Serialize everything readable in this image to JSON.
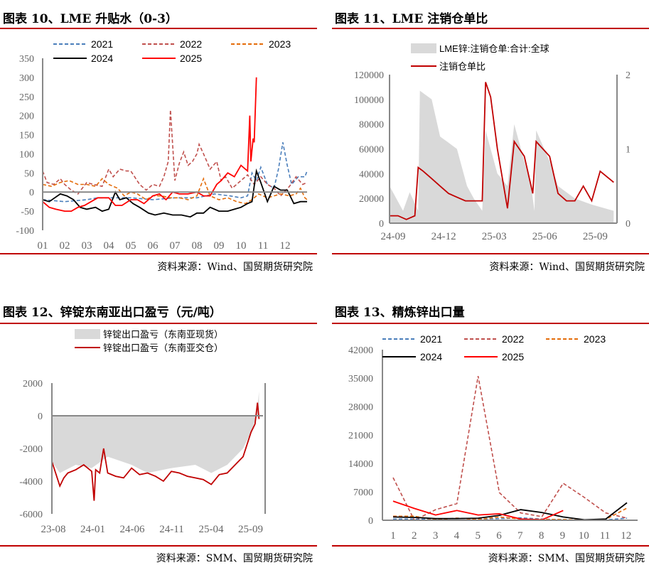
{
  "chart_data": [
    {
      "id": "c1",
      "type": "line",
      "title": "图表 10、LME 升贴水（0-3）",
      "source": "资料来源：Wind、国贸期货研究院",
      "ylim": [
        -100,
        350
      ],
      "yticks": [
        "350",
        "300",
        "250",
        "200",
        "150",
        "100",
        "50",
        "0",
        "-50",
        "-100"
      ],
      "xticks": [
        "01",
        "02",
        "03",
        "04",
        "05",
        "06",
        "07",
        "08",
        "09",
        "10",
        "11",
        "12"
      ],
      "series": [
        {
          "name": "2021",
          "color": "#4a7ebb",
          "dash": true,
          "x": [
            1,
            2,
            3,
            3.5,
            4,
            5,
            6,
            7,
            8,
            8.8,
            9.5,
            10,
            10.3,
            10.5,
            10.7,
            10.9,
            11.2,
            11.5,
            11.7,
            11.9,
            12.1,
            12.3,
            12.6,
            12.9,
            13
          ],
          "y": [
            -20,
            -25,
            -20,
            -15,
            -15,
            -15,
            -20,
            -15,
            -15,
            -5,
            -10,
            -15,
            -10,
            50,
            30,
            65,
            20,
            10,
            60,
            130,
            70,
            20,
            40,
            40,
            55
          ]
        },
        {
          "name": "2022",
          "color": "#c0504d",
          "dash": true,
          "x": [
            1,
            1.2,
            1.5,
            1.8,
            2,
            2.3,
            2.6,
            3,
            3.3,
            3.7,
            4,
            4.2,
            4.5,
            4.8,
            5,
            5.4,
            5.7,
            6,
            6.3,
            6.5,
            6.7,
            6.8,
            7,
            7.2,
            7.4,
            7.6,
            7.8,
            8,
            8.1,
            8.3,
            8.6,
            8.9,
            9.1,
            9.3,
            9.6,
            10,
            10.3,
            10.6,
            10.9,
            11.2,
            11.5,
            11.8,
            12.2,
            12.5,
            12.8,
            13
          ],
          "y": [
            55,
            25,
            20,
            35,
            20,
            5,
            -5,
            25,
            20,
            15,
            60,
            40,
            60,
            55,
            55,
            20,
            5,
            20,
            15,
            40,
            80,
            215,
            30,
            75,
            105,
            70,
            80,
            100,
            125,
            100,
            60,
            80,
            30,
            40,
            10,
            30,
            45,
            20,
            40,
            20,
            10,
            -10,
            15,
            40,
            20,
            25
          ]
        },
        {
          "name": "2023",
          "color": "#e46c0a",
          "dash": true,
          "x": [
            1,
            1.4,
            1.8,
            2.2,
            2.6,
            3,
            3.4,
            3.7,
            4,
            4.4,
            4.7,
            5,
            5.3,
            5.7,
            6,
            6.4,
            6.8,
            7.2,
            7.6,
            8,
            8.3,
            8.6,
            9,
            9.4,
            9.8,
            10.2,
            10.5,
            10.8,
            11.2,
            11.5,
            11.8,
            12.2,
            12.5,
            12.7,
            12.9,
            13
          ],
          "y": [
            20,
            15,
            25,
            30,
            20,
            20,
            15,
            35,
            20,
            10,
            -10,
            0,
            -5,
            -20,
            -10,
            -10,
            -15,
            -15,
            -20,
            -10,
            35,
            -10,
            -20,
            -15,
            -25,
            -30,
            -20,
            -5,
            -15,
            -10,
            -5,
            -10,
            -5,
            10,
            -15,
            -20
          ]
        },
        {
          "name": "2024",
          "color": "#000000",
          "dash": false,
          "x": [
            1,
            1.3,
            1.8,
            2.1,
            2.4,
            2.7,
            3,
            3.4,
            3.7,
            4,
            4.3,
            4.5,
            4.8,
            5.1,
            5.4,
            5.8,
            6.1,
            6.5,
            6.9,
            7.3,
            7.7,
            8,
            8.3,
            8.6,
            9,
            9.4,
            9.7,
            10,
            10.3,
            10.5,
            10.7,
            10.9,
            11.2,
            11.5,
            11.8,
            12.1,
            12.4,
            12.7,
            13
          ],
          "y": [
            -20,
            -25,
            -5,
            -10,
            -20,
            -40,
            -45,
            -40,
            -50,
            -45,
            0,
            -20,
            -15,
            -30,
            -40,
            -55,
            -60,
            -55,
            -60,
            -60,
            -65,
            -55,
            -55,
            -40,
            -50,
            -50,
            -45,
            -40,
            -30,
            -25,
            55,
            25,
            -25,
            15,
            5,
            5,
            -30,
            -25,
            -25
          ]
        },
        {
          "name": "2025",
          "color": "#ff0000",
          "dash": false,
          "x": [
            1,
            1.3,
            1.6,
            2,
            2.3,
            2.6,
            2.9,
            3.2,
            3.5,
            4,
            4.3,
            4.6,
            5,
            5.3,
            5.6,
            6,
            6.3,
            6.6,
            6.9,
            7.2,
            7.6,
            8,
            8.3,
            8.6,
            8.9,
            9.1,
            9.4,
            9.7,
            10,
            10.2,
            10.3,
            10.4,
            10.45,
            10.55,
            10.6,
            10.7
          ],
          "y": [
            -25,
            -40,
            -45,
            -50,
            -50,
            -40,
            -35,
            -25,
            -15,
            -15,
            -35,
            -35,
            -20,
            -20,
            -30,
            -10,
            -5,
            -20,
            0,
            -5,
            -5,
            0,
            -10,
            -10,
            20,
            30,
            50,
            40,
            70,
            60,
            55,
            200,
            80,
            140,
            130,
            300
          ]
        }
      ]
    },
    {
      "id": "c2",
      "type": "area+line",
      "title": "图表 11、LME 注销仓单比",
      "source": "资料来源：Wind、国贸期货研究院",
      "ylim": [
        0,
        120000
      ],
      "y2lim": [
        0,
        2
      ],
      "yticks": [
        "120000",
        "100000",
        "80000",
        "60000",
        "40000",
        "20000",
        "0"
      ],
      "y2ticks": [
        "2",
        "1",
        "0"
      ],
      "xticks": [
        "24-09",
        "24-12",
        "25-03",
        "25-06",
        "25-09"
      ],
      "series": [
        {
          "name": "LME锌:注销仓单:合计:全球",
          "color": "#d9d9d9",
          "kind": "area",
          "x": [
            0,
            0.4,
            0.8,
            1.2,
            1.7,
            1.8,
            2.0,
            2.5,
            3,
            3.5,
            4,
            4.6,
            5,
            5.5,
            5.7,
            6,
            6.4,
            7,
            7.4,
            8,
            8.4,
            8.6,
            8.7,
            9.5,
            10,
            11,
            12,
            13.3
          ],
          "y": [
            30000,
            20000,
            10000,
            25000,
            10000,
            107000,
            105000,
            100000,
            70000,
            65000,
            60000,
            30000,
            20000,
            10000,
            75000,
            60000,
            40000,
            30000,
            80000,
            50000,
            30000,
            10000,
            75000,
            50000,
            30000,
            20000,
            15000,
            10000
          ]
        },
        {
          "name": "注销仓单比",
          "color": "#c00000",
          "kind": "line",
          "x": [
            0,
            0.5,
            1,
            1.5,
            1.7,
            2,
            2.5,
            3,
            3.5,
            4,
            4.5,
            5,
            5.5,
            5.7,
            6,
            6.4,
            7,
            7.4,
            8,
            8.5,
            8.7,
            9.5,
            10,
            10.5,
            11,
            11.5,
            12,
            12.5,
            13.3
          ],
          "y": [
            0.1,
            0.1,
            0.05,
            0.1,
            0.75,
            0.7,
            0.6,
            0.5,
            0.4,
            0.35,
            0.3,
            0.3,
            0.3,
            1.9,
            1.7,
            1.0,
            0.2,
            1.1,
            0.9,
            0.4,
            1.1,
            0.9,
            0.4,
            0.3,
            0.3,
            0.5,
            0.3,
            0.7,
            0.55
          ]
        }
      ]
    },
    {
      "id": "c3",
      "type": "area+line",
      "title": "图表 12、锌锭东南亚出口盈亏（元/吨）",
      "source": "资料来源：SMM、国贸期货研究院",
      "ylim": [
        -6000,
        2000
      ],
      "yticks": [
        "2000",
        "0",
        "-2000",
        "-4000",
        "-6000"
      ],
      "xticks": [
        "23-08",
        "24-01",
        "24-06",
        "24-11",
        "25-04",
        "25-09"
      ],
      "series": [
        {
          "name": "锌锭出口盈亏（东南亚现货）",
          "color": "#d9d9d9",
          "kind": "area",
          "x": [
            0,
            1,
            3,
            5,
            7,
            10,
            12,
            15,
            18,
            20,
            22,
            24,
            25,
            25.7,
            26
          ],
          "y": [
            -2800,
            -3500,
            -3000,
            -3200,
            -2500,
            -3000,
            -3500,
            -3200,
            -3000,
            -3500,
            -3000,
            -2000,
            -1000,
            0,
            1500
          ]
        },
        {
          "name": "锌锭出口盈亏（东南亚交仓）",
          "color": "#c00000",
          "kind": "line",
          "x": [
            0,
            1,
            1.5,
            2,
            3,
            4,
            5,
            5.3,
            5.5,
            6,
            6.5,
            7,
            8,
            9,
            10,
            11,
            12,
            13,
            14,
            15,
            16,
            17,
            18,
            19,
            20,
            21,
            22,
            23,
            24,
            25,
            25.5,
            25.8,
            26
          ],
          "y": [
            -2800,
            -4300,
            -3800,
            -3500,
            -3300,
            -3000,
            -3400,
            -5200,
            -3300,
            -3500,
            -2000,
            -3500,
            -3700,
            -3800,
            -3200,
            -3600,
            -3500,
            -3700,
            -4000,
            -3400,
            -3500,
            -3700,
            -3800,
            -3900,
            -4200,
            -3600,
            -3500,
            -3000,
            -2500,
            -1000,
            -500,
            800,
            -200
          ]
        }
      ]
    },
    {
      "id": "c4",
      "type": "line",
      "title": "图表 13、精炼锌出口量",
      "source": "资料来源：SMM、国贸期货研究院",
      "ylim": [
        0,
        42000
      ],
      "yticks": [
        "42000",
        "35000",
        "28000",
        "21000",
        "14000",
        "7000",
        "0"
      ],
      "xticks": [
        "1",
        "2",
        "3",
        "4",
        "5",
        "6",
        "7",
        "8",
        "9",
        "10",
        "11",
        "12"
      ],
      "series": [
        {
          "name": "2021",
          "color": "#4a7ebb",
          "dash": true,
          "x": [
            1,
            2,
            3,
            4,
            5,
            6,
            7,
            8,
            9,
            10,
            11,
            12
          ],
          "y": [
            300,
            300,
            200,
            500,
            300,
            400,
            600,
            300,
            100,
            100,
            100,
            500
          ]
        },
        {
          "name": "2022",
          "color": "#c0504d",
          "dash": true,
          "x": [
            1,
            2,
            3,
            4,
            5,
            6,
            7,
            8,
            9,
            10,
            11,
            12
          ],
          "y": [
            10500,
            0,
            2600,
            4100,
            35500,
            6800,
            1800,
            900,
            9100,
            5600,
            1800,
            500
          ]
        },
        {
          "name": "2023",
          "color": "#e46c0a",
          "dash": true,
          "x": [
            1,
            2,
            3,
            4,
            5,
            6,
            7,
            8,
            9,
            10,
            11,
            12
          ],
          "y": [
            1000,
            1000,
            100,
            500,
            200,
            800,
            300,
            200,
            200,
            0,
            200,
            3000
          ]
        },
        {
          "name": "2024",
          "color": "#000000",
          "dash": false,
          "x": [
            1,
            2,
            3,
            4,
            5,
            6,
            7,
            8,
            9,
            10,
            11,
            12
          ],
          "y": [
            800,
            700,
            400,
            400,
            500,
            1200,
            2600,
            1900,
            800,
            100,
            300,
            4300
          ]
        },
        {
          "name": "2025",
          "color": "#ff0000",
          "dash": false,
          "x": [
            1,
            2,
            3,
            4,
            5,
            6,
            7,
            8,
            9
          ],
          "y": [
            4700,
            2900,
            1300,
            2400,
            1300,
            1600,
            300,
            100,
            2400
          ]
        }
      ]
    }
  ]
}
